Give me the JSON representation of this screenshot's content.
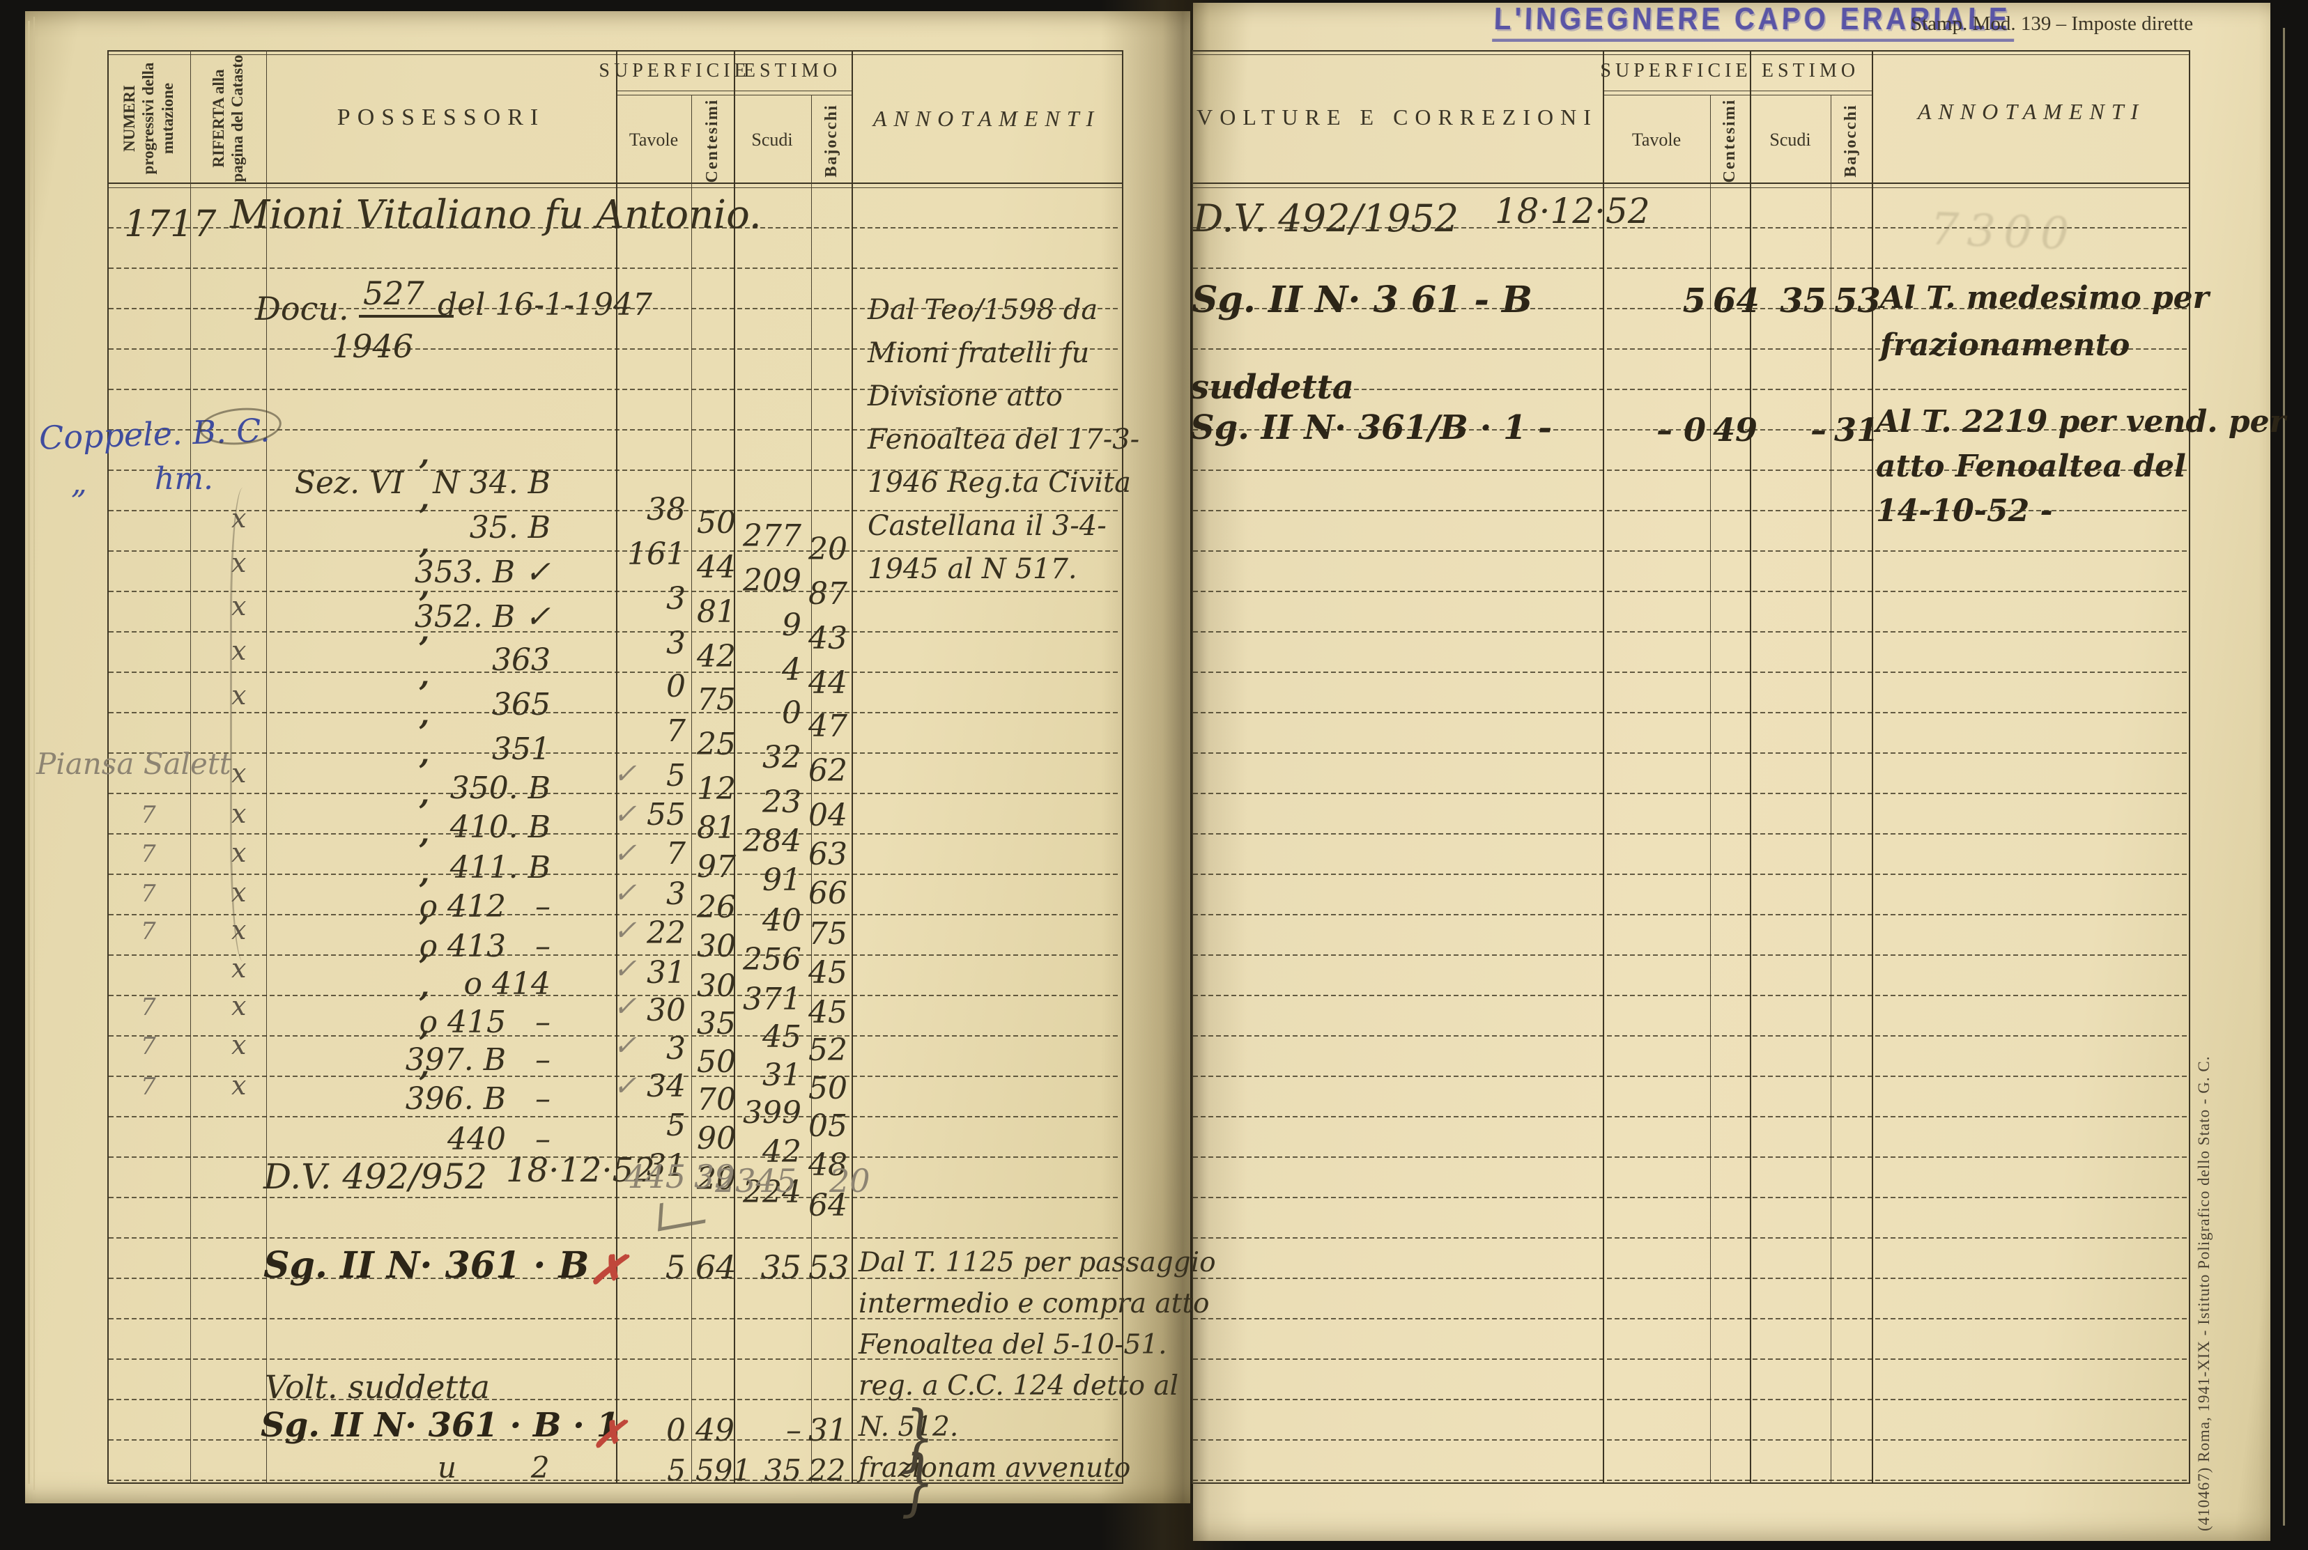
{
  "stamp_text": "L'INGEGNERE CAPO ERARIALE",
  "form_imprint": "Stamp. Mod. 139 – Imposte dirette",
  "printer_imprint": "(410467) Roma, 1941-XIX - Istituto Poligrafico dello Stato - G. C.",
  "colors": {
    "stamp_ink": "#5a55a5",
    "margin_ink_blue": "#3f4c9e",
    "correction_red": "#c0473a",
    "pencil": "#8d8472"
  },
  "headers": {
    "numeri": "NUMERI progressivi della mutazione",
    "riferta": "RIFERTA alla pagina del Catasto",
    "possessori": "POSSESSORI",
    "superficie": "SUPERFICIE",
    "estimo": "ESTIMO",
    "tavole": "Tavole",
    "centesimi": "Centesimi",
    "scudi": "Scudi",
    "bajocchi": "Bajocchi",
    "annotamenti": "ANNOTAMENTI",
    "volture": "VOLTURE E CORREZIONI"
  },
  "left_page": {
    "mutation_number": "1717",
    "possessor": "Mioni Vitaliano fu Antonio.",
    "doc": {
      "label": "Docu.",
      "num": "527",
      "year": "1946",
      "date": "del 16-1-1947"
    },
    "margin_blue_1": "Coppele. B. C.",
    "margin_blue_2": "hm.",
    "margin_blue_ditto": "„",
    "margin_pencil": "Piansa Salett",
    "top_annotation": [
      "Dal Teo/1598 da",
      "Mioni fratelli fu",
      "Divisione atto",
      "Fenoaltea del 17-3-",
      "1946 Reg.ta Civita",
      "Castellana il 3-4-",
      "1945 al N 517."
    ],
    "parcels": [
      {
        "m1": "",
        "m2": "",
        "ditto": "",
        "label": "Sez. VI   N 34. B",
        "chk": "",
        "t": "38",
        "c": "50",
        "s": "277",
        "b": "20"
      },
      {
        "m1": "",
        "m2": "",
        "ditto": "’",
        "label": "35. B",
        "chk": "",
        "t": "161",
        "c": "44",
        "s": "209",
        "b": "87"
      },
      {
        "m1": "",
        "m2": "x",
        "ditto": "’",
        "label": "353. B ✓",
        "chk": "",
        "t": "3",
        "c": "81",
        "s": "9",
        "b": "43"
      },
      {
        "m1": "",
        "m2": "x",
        "ditto": "’",
        "label": "352. B ✓",
        "chk": "",
        "t": "3",
        "c": "42",
        "s": "4",
        "b": "44"
      },
      {
        "m1": "",
        "m2": "x",
        "ditto": "’",
        "label": "363",
        "chk": "",
        "t": "0",
        "c": "75",
        "s": "0",
        "b": "47"
      },
      {
        "m1": "",
        "m2": "x",
        "ditto": "’",
        "label": "365",
        "chk": "",
        "t": "7",
        "c": "25",
        "s": "32",
        "b": "62"
      },
      {
        "m1": "",
        "m2": "x",
        "ditto": "’",
        "label": "351",
        "chk": "",
        "t": "5",
        "c": "12",
        "s": "23",
        "b": "04"
      },
      {
        "m1": "",
        "m2": "",
        "ditto": "’",
        "label": "350. B",
        "chk": "",
        "t": "55",
        "c": "81",
        "s": "284",
        "b": "63"
      },
      {
        "m1": "",
        "m2": "x",
        "ditto": "’",
        "label": "410. B",
        "chk": "✓",
        "t": "7",
        "c": "97",
        "s": "91",
        "b": "66"
      },
      {
        "m1": "7",
        "m2": "x",
        "ditto": "’",
        "label": "411. B",
        "chk": "✓",
        "t": "3",
        "c": "26",
        "s": "40",
        "b": "75"
      },
      {
        "m1": "7",
        "m2": "x",
        "ditto": "’",
        "label": "o 412   –",
        "chk": "✓",
        "t": "22",
        "c": "30",
        "s": "256",
        "b": "45"
      },
      {
        "m1": "7",
        "m2": "x",
        "ditto": "’",
        "label": "o 413   –",
        "chk": "✓",
        "t": "31",
        "c": "30",
        "s": "371",
        "b": "45"
      },
      {
        "m1": "7",
        "m2": "x",
        "ditto": "’",
        "label": "o 414",
        "chk": "✓",
        "t": "30",
        "c": "35",
        "s": "45",
        "b": "52"
      },
      {
        "m1": "",
        "m2": "x",
        "ditto": "’",
        "label": "o 415   –",
        "chk": "✓",
        "t": "3",
        "c": "50",
        "s": "31",
        "b": "50"
      },
      {
        "m1": "7",
        "m2": "x",
        "ditto": "’",
        "label": "397. B   –",
        "chk": "✓",
        "t": "34",
        "c": "70",
        "s": "399",
        "b": "05"
      },
      {
        "m1": "7",
        "m2": "x",
        "ditto": "’",
        "label": "396. B   –",
        "chk": "✓",
        "t": "5",
        "c": "90",
        "s": "42",
        "b": "48"
      },
      {
        "m1": "7",
        "m2": "x",
        "ditto": "’",
        "label": "440   –",
        "chk": "✓",
        "t": "31",
        "c": "20",
        "s": "224",
        "b": "64"
      }
    ],
    "dv_row": {
      "text": "D.V. 492/952",
      "date": "18·12·52",
      "t": "445",
      "c": "39",
      "s": "2345",
      "b": "20"
    },
    "row_361b": {
      "text": "Sg. II N· 361 · B",
      "mark": "✗",
      "t": "5",
      "c": "64",
      "s": "35",
      "b": "53"
    },
    "volt_line": "Volt. suddetta",
    "row_361b1": {
      "text": "Sg. II N· 361 · B · 1",
      "mark": "✗",
      "t": "0",
      "c": "49",
      "s": "–",
      "b": "31"
    },
    "row_ditto": {
      "text": "u        2",
      "t": "5",
      "c": "591",
      "s": "35",
      "b": "22"
    },
    "bottom_annotation": [
      "Dal T. 1125 per passaggio",
      "intermedio e compra atto",
      "Fenoaltea del 5-10-51.",
      "reg. a C.C. 124 detto al",
      "N. 512.",
      "frazionam avvenuto"
    ],
    "brace": "}"
  },
  "right_page": {
    "dv_row": {
      "text": "D.V. 492/1952",
      "date": "18·12·52"
    },
    "row_361b": {
      "text": "Sg. II N· 3 61 - B",
      "t": "5",
      "c": "64",
      "s": "35",
      "b": "53"
    },
    "sudd_line": "suddetta",
    "row_361b1": {
      "text": "Sg. II N· 361/B · 1 -",
      "t": "– 0",
      "c": "49",
      "s": "–",
      "b": "31"
    },
    "annotation_1": [
      "Al T. medesimo per",
      "frazionamento"
    ],
    "annotation_2": [
      "Al T. 2219 per vend. per",
      "atto Fenoaltea del",
      "14-10-52 -"
    ],
    "ghost_note": "7300"
  }
}
